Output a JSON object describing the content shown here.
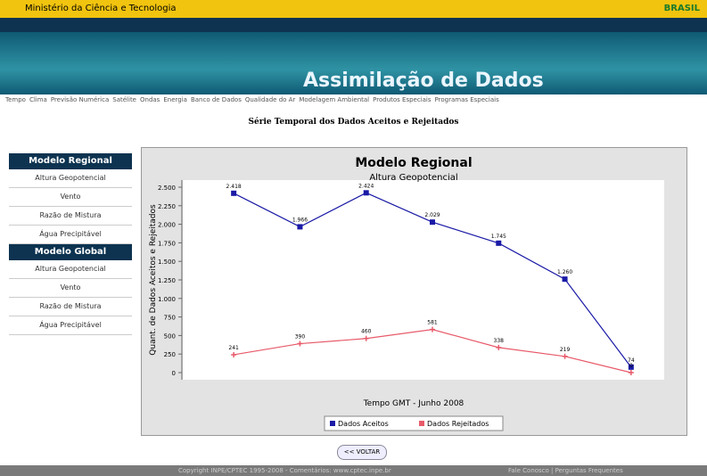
{
  "header": {
    "ministry": "Ministério da Ciência e Tecnologia",
    "brand": "BRASIL",
    "banner": "Assimilação de Dados"
  },
  "nav": [
    "Tempo",
    "Clima",
    "Previsão Numérica",
    "Satélite",
    "Ondas",
    "Energia",
    "Banco de Dados",
    "Qualidade do Ar",
    "Modelagem Ambiental",
    "Produtos Especiais",
    "Programas Especiais"
  ],
  "page_title": "Série Temporal dos Dados Aceitos e Rejeitados",
  "sidebar": [
    {
      "heading": "Modelo Regional",
      "items": [
        "Altura Geopotencial",
        "Vento",
        "Razão de Mistura",
        "Água Precipitável"
      ]
    },
    {
      "heading": "Modelo Global",
      "items": [
        "Altura Geopotencial",
        "Vento",
        "Razão de Mistura",
        "Água Precipitável"
      ]
    }
  ],
  "chart_data": {
    "type": "line",
    "title": "Modelo Regional",
    "subtitle": "Altura Geopotencial",
    "x_label": "Tempo GMT - Junho 2008",
    "y_label": "Quant. de Dados Aceitos e Rejeitados",
    "categories": [
      null,
      null,
      null,
      null,
      null,
      null,
      null
    ],
    "series": [
      {
        "name": "Dados Aceitos",
        "color": "#1a1aa6",
        "values": [
          2418,
          1966,
          2424,
          2029,
          1745,
          1260,
          74
        ],
        "value_labels": [
          "2.418",
          "1.966",
          "2.424",
          "2.029",
          "1.745",
          "1.260",
          "74"
        ]
      },
      {
        "name": "Dados Rejeitados",
        "color": "#e85a6a",
        "values": [
          241,
          390,
          460,
          581,
          338,
          219,
          0
        ]
      }
    ],
    "ylim": [
      0,
      2500
    ],
    "yticks": [
      0,
      {
        "value": 250,
        "label": "250"
      },
      {
        "value": 500,
        "label": "500"
      },
      {
        "value": 750,
        "label": "750"
      },
      {
        "value": 1000,
        "label": "1.000"
      },
      {
        "value": 1250,
        "label": "1.250"
      },
      {
        "value": 1500,
        "label": "1.500"
      },
      {
        "value": 1750,
        "label": "1.750"
      },
      {
        "value": 2000,
        "label": "2.000"
      },
      {
        "value": 2250,
        "label": "2.250"
      },
      {
        "value": 2500,
        "label": "2.500"
      }
    ],
    "legend": "bottom"
  },
  "button": "<< VOLTAR",
  "footer": {
    "left": "Copyright INPE/CPTEC 1995-2008 - Comentários: www.cptec.inpe.br",
    "right": "Fale Conosco | Perguntas Frequentes"
  }
}
